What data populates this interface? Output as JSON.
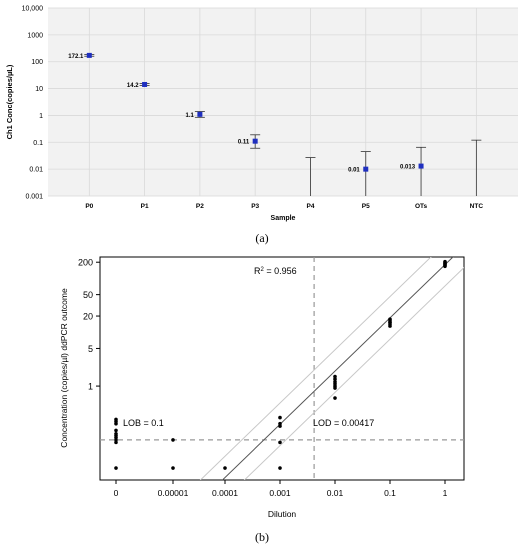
{
  "chart_data": [
    {
      "type": "scatter",
      "panel_label": "(a)",
      "title": "",
      "xlabel": "Sample",
      "ylabel": "Ch1 Conc(copies/µL)",
      "yscale": "log",
      "ylim": [
        0.001,
        10000
      ],
      "grid": true,
      "yticks": [
        "0.001",
        "0.01",
        "0.1",
        "1",
        "10",
        "100",
        "1000",
        "10,000"
      ],
      "categories": [
        "P0",
        "P1",
        "P2",
        "P3",
        "P4",
        "P5",
        "OTs",
        "NTC"
      ],
      "points": [
        {
          "x": "P0",
          "y": 172.1,
          "err_low": 160,
          "err_high": 185,
          "label": "172.1"
        },
        {
          "x": "P1",
          "y": 14.2,
          "err_low": 13.0,
          "err_high": 15.5,
          "label": "14.2"
        },
        {
          "x": "P2",
          "y": 1.1,
          "err_low": 0.85,
          "err_high": 1.4,
          "label": "1.1"
        },
        {
          "x": "P3",
          "y": 0.11,
          "err_low": 0.06,
          "err_high": 0.19,
          "label": "0.11"
        },
        {
          "x": "P4",
          "y": null,
          "err_low": 0.001,
          "err_high": 0.027,
          "label": ""
        },
        {
          "x": "P5",
          "y": 0.01,
          "err_low": 0.001,
          "err_high": 0.045,
          "label": "0.01"
        },
        {
          "x": "OTs",
          "y": 0.013,
          "err_low": 0.001,
          "err_high": 0.065,
          "label": "0.013"
        },
        {
          "x": "NTC",
          "y": null,
          "err_low": 0.001,
          "err_high": 0.12,
          "label": ""
        }
      ],
      "point_color": "#1f2fbf"
    },
    {
      "type": "scatter",
      "panel_label": "(b)",
      "title": "",
      "xlabel": "Dilution",
      "ylabel": "Concentration (copies/µl) ddPCR outcome",
      "yscale": "log",
      "ylim_display": [
        0.018,
        250
      ],
      "xticks": [
        "0",
        "0.00001",
        "0.0001",
        "0.001",
        "0.01",
        "0.1",
        "1"
      ],
      "yticks": [
        {
          "label": "1",
          "value": 1
        },
        {
          "label": "5",
          "value": 5
        },
        {
          "label": "20",
          "value": 20
        },
        {
          "label": "50",
          "value": 50
        },
        {
          "label": "200",
          "value": 200
        }
      ],
      "annotations": {
        "r2": "R",
        "r2_sup": "2",
        "r2_value": " = 0.956",
        "lob": "LOB = 0.1",
        "lod": "LOD = 0.00417"
      },
      "lob_value": 0.1,
      "lod_value": 0.00417,
      "fit_line": {
        "from": [
          0.0001,
          0.02
        ],
        "to": [
          1,
          180
        ]
      },
      "points": [
        {
          "x": 0,
          "y": 0.24
        },
        {
          "x": 0,
          "y": 0.22
        },
        {
          "x": 0,
          "y": 0.2
        },
        {
          "x": 0,
          "y": 0.15
        },
        {
          "x": 0,
          "y": 0.13
        },
        {
          "x": 0,
          "y": 0.12
        },
        {
          "x": 0,
          "y": 0.11
        },
        {
          "x": 0,
          "y": 0.1
        },
        {
          "x": 0,
          "y": 0.09
        },
        {
          "x": 0,
          "y": 0.03
        },
        {
          "x": 1e-05,
          "y": 0.1
        },
        {
          "x": 1e-05,
          "y": 0.03
        },
        {
          "x": 0.0001,
          "y": 0.03
        },
        {
          "x": 0.001,
          "y": 0.26
        },
        {
          "x": 0.001,
          "y": 0.2
        },
        {
          "x": 0.001,
          "y": 0.18
        },
        {
          "x": 0.001,
          "y": 0.09
        },
        {
          "x": 0.001,
          "y": 0.03
        },
        {
          "x": 0.01,
          "y": 1.5
        },
        {
          "x": 0.01,
          "y": 1.35
        },
        {
          "x": 0.01,
          "y": 1.2
        },
        {
          "x": 0.01,
          "y": 1.1
        },
        {
          "x": 0.01,
          "y": 1.0
        },
        {
          "x": 0.01,
          "y": 0.92
        },
        {
          "x": 0.01,
          "y": 0.6
        },
        {
          "x": 0.1,
          "y": 17.5
        },
        {
          "x": 0.1,
          "y": 16.5
        },
        {
          "x": 0.1,
          "y": 15.5
        },
        {
          "x": 0.1,
          "y": 15
        },
        {
          "x": 0.1,
          "y": 14
        },
        {
          "x": 0.1,
          "y": 13
        },
        {
          "x": 1,
          "y": 205
        },
        {
          "x": 1,
          "y": 195
        },
        {
          "x": 1,
          "y": 188
        },
        {
          "x": 1,
          "y": 182
        },
        {
          "x": 1,
          "y": 175
        },
        {
          "x": 1,
          "y": 168
        }
      ]
    }
  ]
}
